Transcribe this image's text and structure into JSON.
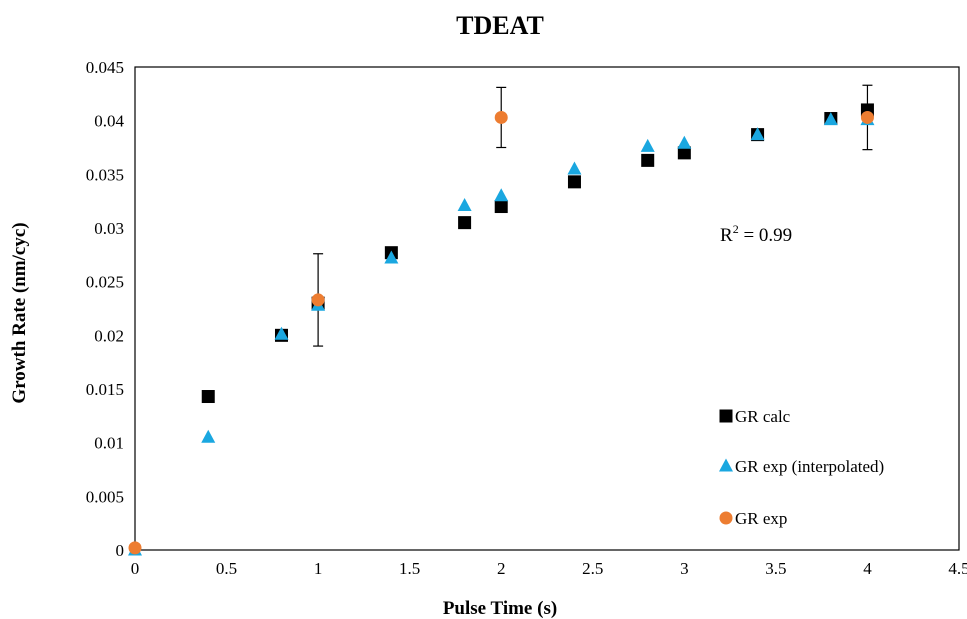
{
  "chart_data": {
    "type": "scatter",
    "title": "TDEAT",
    "xlabel": "Pulse Time (s)",
    "ylabel": "Growth Rate (nm/cyc)",
    "xlim": [
      0,
      4.5
    ],
    "ylim": [
      0,
      0.045
    ],
    "x_ticks": [
      "0",
      "0.5",
      "1",
      "1.5",
      "2",
      "2.5",
      "3",
      "3.5",
      "4",
      "4.5"
    ],
    "y_ticks": [
      "0",
      "0.005",
      "0.01",
      "0.015",
      "0.02",
      "0.025",
      "0.03",
      "0.035",
      "0.04",
      "0.045"
    ],
    "grid": false,
    "legend_position": "right",
    "annotation": {
      "prefix": "R",
      "sup": "2",
      "suffix": " = 0.99"
    },
    "series": [
      {
        "name": "GR calc",
        "marker": "square",
        "color": "#000000",
        "x": [
          0.4,
          0.8,
          1.0,
          1.4,
          1.8,
          2.0,
          2.4,
          2.8,
          3.0,
          3.4,
          3.8,
          4.0
        ],
        "y": [
          0.0143,
          0.02,
          0.023,
          0.0277,
          0.0305,
          0.032,
          0.0343,
          0.0363,
          0.037,
          0.0387,
          0.0402,
          0.041
        ]
      },
      {
        "name": "GR exp (interpolated)",
        "marker": "triangle",
        "color": "#1aa7e0",
        "x": [
          0,
          0.4,
          0.8,
          1.0,
          1.4,
          1.8,
          2.0,
          2.4,
          2.8,
          3.0,
          3.4,
          3.8,
          4.0
        ],
        "y": [
          0.0,
          0.0105,
          0.0201,
          0.0228,
          0.0272,
          0.0321,
          0.033,
          0.0355,
          0.0376,
          0.0379,
          0.0387,
          0.0401,
          0.0401
        ]
      },
      {
        "name": "GR exp",
        "marker": "circle",
        "color": "#ed7d31",
        "x": [
          0,
          1.0,
          2.0,
          4.0
        ],
        "y": [
          0.0002,
          0.0233,
          0.0403,
          0.0403
        ],
        "error": [
          0,
          0.0043,
          0.0028,
          0.003
        ]
      }
    ]
  }
}
